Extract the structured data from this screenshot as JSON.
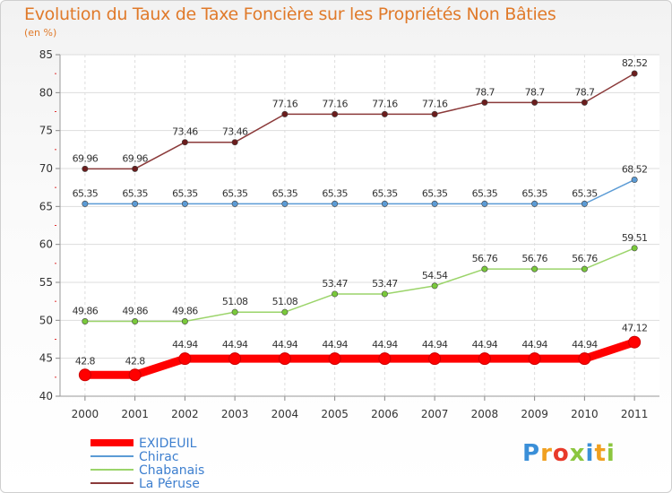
{
  "chart_data": {
    "type": "line",
    "title": "Evolution du Taux de Taxe Foncière sur les Propriétés Non Bâties",
    "ylabel": "(en %)",
    "xlabel": "",
    "x": [
      "2000",
      "2001",
      "2002",
      "2003",
      "2004",
      "2005",
      "2006",
      "2007",
      "2008",
      "2009",
      "2010",
      "2011"
    ],
    "ylim": [
      40,
      85
    ],
    "yticks": [
      40,
      45,
      50,
      55,
      60,
      65,
      70,
      75,
      80,
      85
    ],
    "grid": true,
    "series": [
      {
        "name": "EXIDEUIL",
        "color": "#ff0000",
        "thick": true,
        "values": [
          42.8,
          42.8,
          44.94,
          44.94,
          44.94,
          44.94,
          44.94,
          44.94,
          44.94,
          44.94,
          44.94,
          47.12
        ],
        "labels": [
          "42.8",
          "42.8",
          "44.94",
          "44.94",
          "44.94",
          "44.94",
          "44.94",
          "44.94",
          "44.94",
          "44.94",
          "44.94",
          "47.12"
        ]
      },
      {
        "name": "Chirac",
        "color": "#5b9bd5",
        "marker": "#5b9bd5",
        "values": [
          65.35,
          65.35,
          65.35,
          65.35,
          65.35,
          65.35,
          65.35,
          65.35,
          65.35,
          65.35,
          65.35,
          68.52
        ],
        "labels": [
          "65.35",
          "65.35",
          "65.35",
          "65.35",
          "65.35",
          "65.35",
          "65.35",
          "65.35",
          "65.35",
          "65.35",
          "65.35",
          "68.52"
        ]
      },
      {
        "name": "Chabanais",
        "color": "#9bd46a",
        "marker": "#79c93a",
        "values": [
          49.86,
          49.86,
          49.86,
          51.08,
          51.08,
          53.47,
          53.47,
          54.54,
          56.76,
          56.76,
          56.76,
          59.51
        ],
        "labels": [
          "49.86",
          "49.86",
          "49.86",
          "51.08",
          "51.08",
          "53.47",
          "53.47",
          "54.54",
          "56.76",
          "56.76",
          "56.76",
          "59.51"
        ]
      },
      {
        "name": "La Péruse",
        "color": "#8b3a3a",
        "marker": "#6b1d1d",
        "values": [
          69.96,
          69.96,
          73.46,
          73.46,
          77.16,
          77.16,
          77.16,
          77.16,
          78.7,
          78.7,
          78.7,
          82.52
        ],
        "labels": [
          "69.96",
          "69.96",
          "73.46",
          "73.46",
          "77.16",
          "77.16",
          "77.16",
          "77.16",
          "78.7",
          "78.7",
          "78.7",
          "82.52"
        ]
      }
    ]
  },
  "legend": {
    "items": [
      "EXIDEUIL",
      "Chirac",
      "Chabanais",
      "La Péruse"
    ]
  },
  "logo": {
    "letters": [
      "P",
      "r",
      "o",
      "x",
      "i",
      "t",
      "i"
    ],
    "colors": [
      "#3a8fd8",
      "#f0a020",
      "#e83a2a",
      "#8cc63f",
      "#3a8fd8",
      "#f0a020",
      "#8cc63f"
    ]
  }
}
